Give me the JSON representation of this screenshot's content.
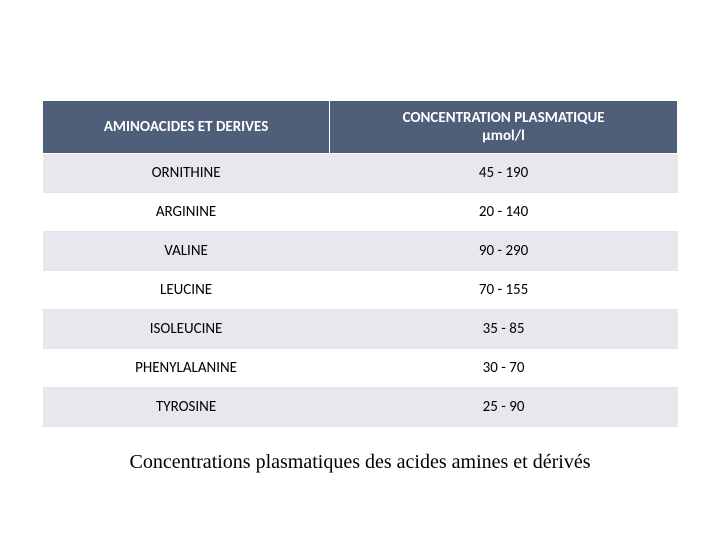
{
  "table": {
    "headers": {
      "col1": "AMINOACIDES ET DERIVES",
      "col2_line1": "CONCENTRATION PLASMATIQUE",
      "col2_line2": "μmol/l"
    },
    "rows": [
      {
        "name": "ORNITHINE",
        "range": "45  -   190"
      },
      {
        "name": "ARGININE",
        "range": "20    -  140"
      },
      {
        "name": "VALINE",
        "range": "90   -  290"
      },
      {
        "name": "LEUCINE",
        "range": "70    -  155"
      },
      {
        "name": "ISOLEUCINE",
        "range": "35    -   85"
      },
      {
        "name": "PHENYLALANINE",
        "range": "30    -  70"
      },
      {
        "name": "TYROSINE",
        "range": "25    -    90"
      }
    ],
    "row_stripe_colors": {
      "odd": "#e9e6ed",
      "even": "#ffffff"
    },
    "header_bg": "#4f5f7a",
    "header_fg": "#ffffff"
  },
  "caption": "Concentrations plasmatiques des acides amines et dérivés"
}
